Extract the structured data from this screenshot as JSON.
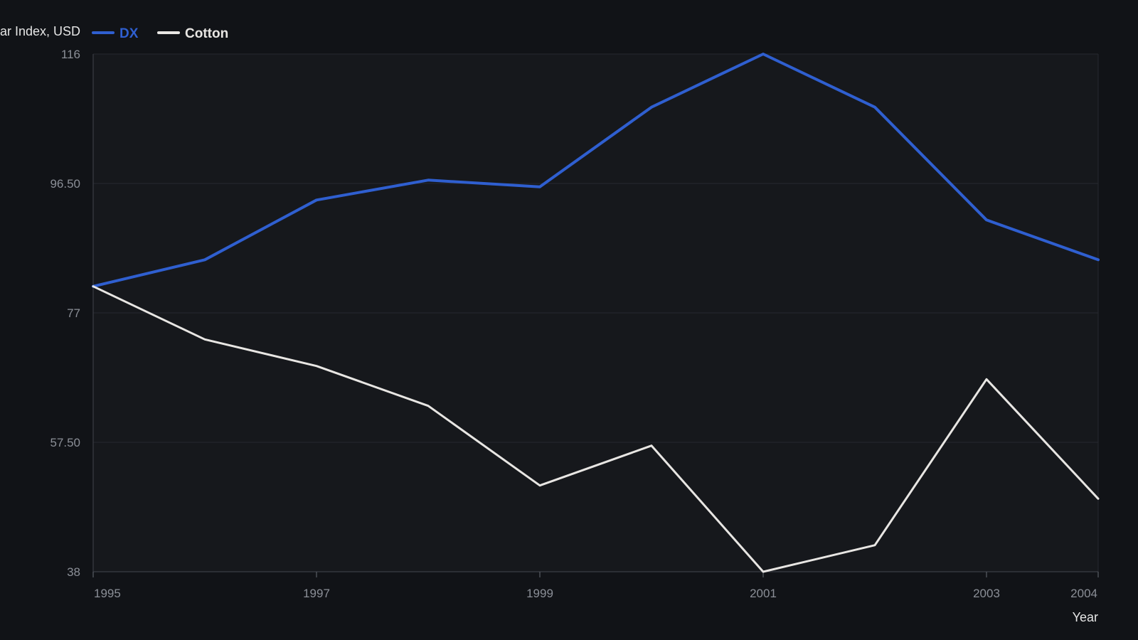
{
  "chart_data": {
    "type": "line",
    "title": "",
    "ylabel": "ar Index, USD",
    "xlabel": "Year",
    "x": [
      1995,
      1996,
      1997,
      1998,
      1999,
      2000,
      2001,
      2002,
      2003,
      2004
    ],
    "x_ticks": [
      "1995",
      "1997",
      "1999",
      "2001",
      "2003",
      "2004"
    ],
    "y_ticks": [
      "116",
      "96.50",
      "77",
      "57.50",
      "38"
    ],
    "ylim": [
      38,
      116
    ],
    "grid": true,
    "legend_position": "top-left",
    "series": [
      {
        "name": "DX",
        "color": "#2f5fd0",
        "values": [
          81,
          85,
          94,
          97,
          96,
          108,
          116,
          108,
          91,
          85
        ]
      },
      {
        "name": "Cotton",
        "color": "#e8e6e3",
        "values": [
          81,
          73,
          69,
          63,
          51,
          57,
          38,
          42,
          67,
          49
        ]
      }
    ]
  }
}
